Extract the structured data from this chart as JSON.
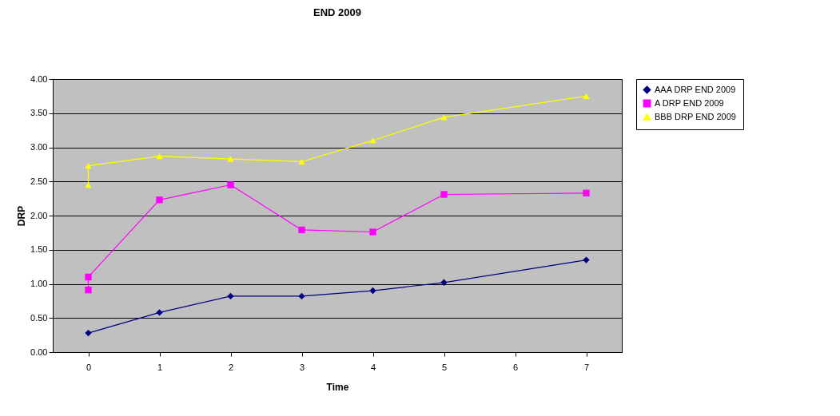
{
  "chart_data": {
    "type": "line",
    "title": "END 2009",
    "xlabel": "Time",
    "ylabel": "DRP",
    "xlim": [
      -0.5,
      7.5
    ],
    "xticks": [
      0,
      1,
      2,
      3,
      4,
      5,
      6,
      7
    ],
    "ylim": [
      0,
      4
    ],
    "yticks": [
      {
        "value": 0,
        "label": "0.00"
      },
      {
        "value": 0.5,
        "label": "0.50"
      },
      {
        "value": 1,
        "label": "1.00"
      },
      {
        "value": 1.5,
        "label": "1.50"
      },
      {
        "value": 2,
        "label": "2.00"
      },
      {
        "value": 2.5,
        "label": "2.50"
      },
      {
        "value": 3,
        "label": "3.00"
      },
      {
        "value": 3.5,
        "label": "3.50"
      },
      {
        "value": 4,
        "label": "4.00"
      }
    ],
    "grid": "y",
    "legend": "right",
    "series": [
      {
        "name": "AAA DRP END 2009",
        "color": "#000080",
        "marker": "diamond",
        "x": [
          0,
          1,
          2,
          3,
          4,
          5,
          7
        ],
        "values": [
          0.28,
          0.58,
          0.82,
          0.82,
          0.9,
          1.02,
          1.35
        ]
      },
      {
        "name": "A DRP END 2009",
        "color": "#ff00ff",
        "marker": "square",
        "x": [
          0,
          0,
          1,
          2,
          3,
          4,
          5,
          7
        ],
        "values": [
          0.91,
          1.1,
          2.23,
          2.45,
          1.79,
          1.76,
          2.31,
          2.33
        ]
      },
      {
        "name": "BBB DRP END 2009",
        "color": "#ffff00",
        "marker": "triangle",
        "x": [
          0,
          0,
          1,
          2,
          3,
          4,
          5,
          7
        ],
        "values": [
          2.45,
          2.73,
          2.87,
          2.83,
          2.79,
          3.1,
          3.44,
          3.75
        ]
      }
    ]
  }
}
